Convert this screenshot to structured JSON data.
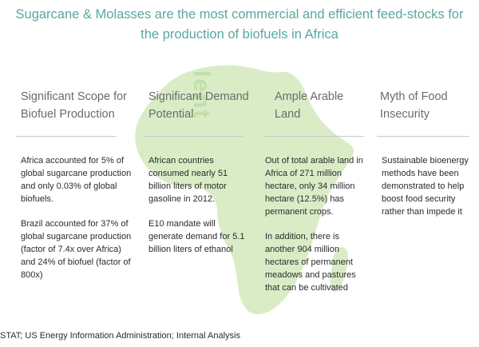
{
  "title": {
    "line1": "Sugarcane & Molasses are the most commercial and efficient feed-stocks for",
    "line2": "the production of biofuels in Africa"
  },
  "watermark_text": "lent",
  "columns": [
    {
      "heading": [
        "Significant Scope for",
        "Biofuel Production"
      ],
      "paragraphs": [
        "Africa accounted for 5% of global sugarcane production and only 0.03% of global biofuels.",
        "Brazil accounted for 37% of global sugarcane production (factor of 7.4x over Africa) and 24% of biofuel (factor of 800x)"
      ]
    },
    {
      "heading": [
        "Significant Demand",
        "Potential"
      ],
      "paragraphs": [
        "African countries consumed nearly 51 billion liters of motor gasoline in 2012.",
        "E10 mandate will generate demand for 5.1 billion liters of ethanol"
      ]
    },
    {
      "heading": [
        "Ample Arable",
        "Land"
      ],
      "paragraphs": [
        "Out of total arable land in Africa of 271 million hectare, only 34 million hectare (12.5%) has permanent crops.",
        "In addition, there is another 904 million hectares of permanent meadows and pastures that can be cultivated"
      ]
    },
    {
      "heading": [
        "Myth of Food",
        "Insecurity"
      ],
      "paragraphs": [
        "Sustainable bioenergy methods have been demonstrated to help boost food security rather than impede it"
      ]
    }
  ],
  "footer": "STAT; US Energy Information Administration; Internal Analysis",
  "colors": {
    "title": "#5aa7a0",
    "heading": "#6b6b6b",
    "map_fill": "#d9ecc6",
    "watermark": "#c2dfa8"
  }
}
